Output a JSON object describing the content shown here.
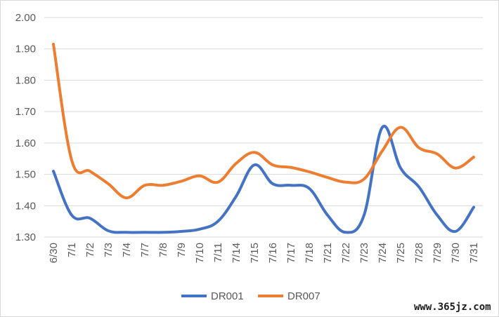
{
  "chart_data": {
    "type": "line",
    "categories": [
      "6/30",
      "7/1",
      "7/2",
      "7/3",
      "7/4",
      "7/7",
      "7/8",
      "7/9",
      "7/10",
      "7/11",
      "7/14",
      "7/15",
      "7/16",
      "7/17",
      "7/18",
      "7/21",
      "7/22",
      "7/23",
      "7/24",
      "7/25",
      "7/28",
      "7/29",
      "7/30",
      "7/31"
    ],
    "series": [
      {
        "name": "DR001",
        "color": "#4472c4",
        "values": [
          1.51,
          1.37,
          1.36,
          1.32,
          1.315,
          1.315,
          1.315,
          1.318,
          1.325,
          1.35,
          1.43,
          1.53,
          1.47,
          1.465,
          1.455,
          1.37,
          1.315,
          1.37,
          1.65,
          1.52,
          1.46,
          1.37,
          1.318,
          1.395
        ]
      },
      {
        "name": "DR007",
        "color": "#ed7d31",
        "values": [
          1.915,
          1.545,
          1.51,
          1.47,
          1.425,
          1.465,
          1.465,
          1.478,
          1.495,
          1.475,
          1.535,
          1.57,
          1.53,
          1.522,
          1.508,
          1.49,
          1.475,
          1.485,
          1.575,
          1.65,
          1.585,
          1.565,
          1.52,
          1.555
        ]
      }
    ],
    "y_ticks": [
      "1.30",
      "1.40",
      "1.50",
      "1.60",
      "1.70",
      "1.80",
      "1.90",
      "2.00"
    ],
    "ylim": [
      1.3,
      2.0
    ],
    "grid": true,
    "legend_position": "bottom",
    "title": "",
    "xlabel": "",
    "ylabel": ""
  },
  "watermark": "www.365jz.com"
}
